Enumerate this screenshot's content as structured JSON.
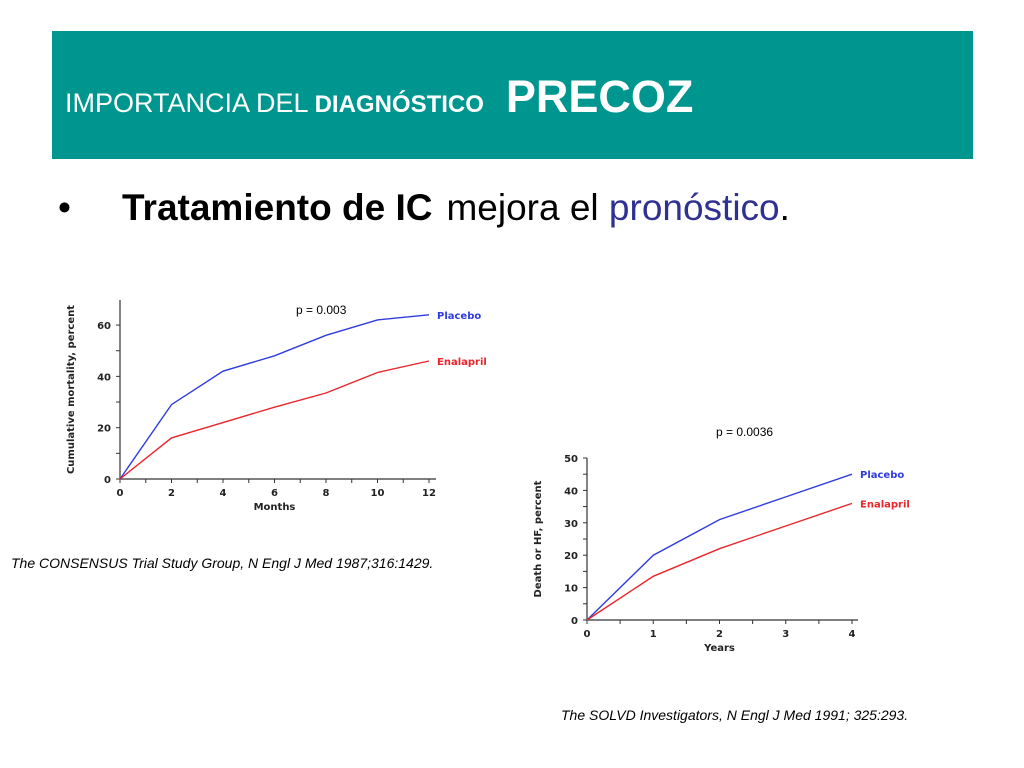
{
  "header": {
    "title_part1": "IMPORTANCIA DEL",
    "title_part2": "DIAGNÓSTICO",
    "title_part3": "PRECOZ",
    "bg_color": "#009690"
  },
  "bullet": {
    "symbol": "•",
    "bold_text": "Tratamiento de IC",
    "normal_text": "mejora el",
    "highlight_text": "pronóstico",
    "end_text": ".",
    "highlight_color": "#2e3192"
  },
  "citations": {
    "consensus": "The CONSENSUS Trial Study Group, N Engl J Med 1987;316:1429.",
    "solvd": "The SOLVD Investigators, N Engl J Med 1991; 325:293."
  },
  "chart_data": [
    {
      "type": "line",
      "annotation": "p = 0.003",
      "xlabel": "Months",
      "ylabel": "Cumulative mortality, percent",
      "xlim": [
        0,
        12
      ],
      "ylim": [
        0,
        70
      ],
      "xticks": [
        0,
        2,
        4,
        6,
        8,
        10,
        12
      ],
      "yticks": [
        0,
        20,
        40,
        60
      ],
      "grid": false,
      "legend": "inline labels at line ends",
      "series": [
        {
          "name": "Placebo",
          "color": "#2f3ce0",
          "x": [
            0,
            2,
            4,
            6,
            8,
            10,
            12
          ],
          "y": [
            0,
            29,
            42,
            48,
            56,
            62,
            64
          ]
        },
        {
          "name": "Enalapril",
          "color": "#e8262b",
          "x": [
            0,
            2,
            4,
            6,
            8,
            10,
            12
          ],
          "y": [
            0,
            16,
            22,
            28,
            33.5,
            41.5,
            46
          ]
        }
      ]
    },
    {
      "type": "line",
      "annotation": "p = 0.0036",
      "xlabel": "Years",
      "ylabel": "Death or HF, percent",
      "xlim": [
        0,
        4
      ],
      "ylim": [
        0,
        50
      ],
      "xticks": [
        0,
        1,
        2,
        3,
        4
      ],
      "yticks": [
        0,
        10,
        20,
        30,
        40,
        50
      ],
      "grid": false,
      "legend": "inline labels at line ends",
      "series": [
        {
          "name": "Placebo",
          "color": "#2f3ce0",
          "x": [
            0,
            1,
            2,
            3,
            4
          ],
          "y": [
            0,
            20,
            31,
            38,
            45
          ]
        },
        {
          "name": "Enalapril",
          "color": "#e8262b",
          "x": [
            0,
            1,
            2,
            3,
            4
          ],
          "y": [
            0,
            13.5,
            22,
            29,
            36
          ]
        }
      ]
    }
  ]
}
